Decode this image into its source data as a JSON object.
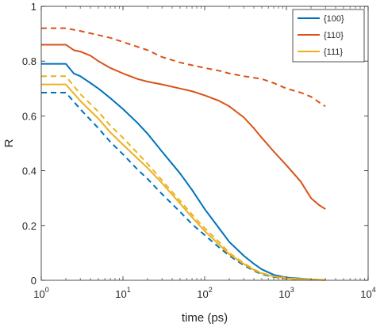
{
  "chart_data": {
    "type": "line",
    "title": "",
    "xlabel": "time (ps)",
    "ylabel": "R",
    "xscale": "log",
    "xlim": [
      1,
      10000
    ],
    "ylim": [
      0,
      1
    ],
    "x_ticks": [
      {
        "base": "10",
        "exp": "0",
        "value": 1
      },
      {
        "base": "10",
        "exp": "1",
        "value": 10
      },
      {
        "base": "10",
        "exp": "2",
        "value": 100
      },
      {
        "base": "10",
        "exp": "3",
        "value": 1000
      },
      {
        "base": "10",
        "exp": "4",
        "value": 10000
      }
    ],
    "y_ticks": [
      {
        "label": "0",
        "value": 0
      },
      {
        "label": "0.2",
        "value": 0.2
      },
      {
        "label": "0.4",
        "value": 0.4
      },
      {
        "label": "0.6",
        "value": 0.6
      },
      {
        "label": "0.8",
        "value": 0.8
      },
      {
        "label": "1",
        "value": 1
      }
    ],
    "grid": false,
    "legend": {
      "position": "top-right",
      "entries": [
        {
          "label": "{100}",
          "color": "#0072BD"
        },
        {
          "label": "{110}",
          "color": "#D95319"
        },
        {
          "label": "{111}",
          "color": "#EDB120"
        }
      ]
    },
    "series": [
      {
        "name": "{100}",
        "color": "#0072BD",
        "dash": "solid",
        "points": [
          [
            1,
            0.79
          ],
          [
            2,
            0.79
          ],
          [
            2.5,
            0.755
          ],
          [
            3,
            0.745
          ],
          [
            4,
            0.72
          ],
          [
            5,
            0.7
          ],
          [
            7,
            0.665
          ],
          [
            10,
            0.625
          ],
          [
            15,
            0.575
          ],
          [
            20,
            0.535
          ],
          [
            30,
            0.47
          ],
          [
            50,
            0.39
          ],
          [
            70,
            0.33
          ],
          [
            100,
            0.26
          ],
          [
            150,
            0.19
          ],
          [
            200,
            0.14
          ],
          [
            300,
            0.09
          ],
          [
            400,
            0.06
          ],
          [
            500,
            0.04
          ],
          [
            700,
            0.02
          ],
          [
            1000,
            0.01
          ],
          [
            2000,
            0.003
          ],
          [
            3000,
            0.001
          ]
        ]
      },
      {
        "name": "{100}",
        "color": "#0072BD",
        "dash": "dashed",
        "points": [
          [
            1,
            0.685
          ],
          [
            2,
            0.685
          ],
          [
            3,
            0.625
          ],
          [
            5,
            0.555
          ],
          [
            7,
            0.505
          ],
          [
            10,
            0.46
          ],
          [
            15,
            0.405
          ],
          [
            20,
            0.37
          ],
          [
            30,
            0.315
          ],
          [
            50,
            0.25
          ],
          [
            70,
            0.205
          ],
          [
            100,
            0.165
          ],
          [
            150,
            0.12
          ],
          [
            200,
            0.09
          ],
          [
            300,
            0.055
          ],
          [
            400,
            0.035
          ],
          [
            500,
            0.022
          ],
          [
            700,
            0.012
          ],
          [
            1000,
            0.006
          ],
          [
            2000,
            0.002
          ],
          [
            3000,
            0.001
          ]
        ]
      },
      {
        "name": "{110}",
        "color": "#D95319",
        "dash": "solid",
        "points": [
          [
            1,
            0.86
          ],
          [
            2,
            0.86
          ],
          [
            2.5,
            0.84
          ],
          [
            3,
            0.835
          ],
          [
            4,
            0.82
          ],
          [
            5,
            0.8
          ],
          [
            7,
            0.775
          ],
          [
            10,
            0.755
          ],
          [
            15,
            0.735
          ],
          [
            20,
            0.725
          ],
          [
            30,
            0.715
          ],
          [
            50,
            0.7
          ],
          [
            70,
            0.69
          ],
          [
            100,
            0.675
          ],
          [
            150,
            0.655
          ],
          [
            200,
            0.635
          ],
          [
            300,
            0.595
          ],
          [
            400,
            0.555
          ],
          [
            500,
            0.52
          ],
          [
            700,
            0.47
          ],
          [
            1000,
            0.42
          ],
          [
            1500,
            0.36
          ],
          [
            2000,
            0.3
          ],
          [
            2500,
            0.275
          ],
          [
            3000,
            0.26
          ]
        ]
      },
      {
        "name": "{110}",
        "color": "#D95319",
        "dash": "dashed",
        "points": [
          [
            1,
            0.92
          ],
          [
            2,
            0.92
          ],
          [
            3,
            0.91
          ],
          [
            5,
            0.895
          ],
          [
            7,
            0.885
          ],
          [
            10,
            0.87
          ],
          [
            20,
            0.84
          ],
          [
            30,
            0.815
          ],
          [
            50,
            0.795
          ],
          [
            70,
            0.785
          ],
          [
            100,
            0.775
          ],
          [
            150,
            0.765
          ],
          [
            200,
            0.755
          ],
          [
            300,
            0.745
          ],
          [
            500,
            0.735
          ],
          [
            700,
            0.72
          ],
          [
            1000,
            0.7
          ],
          [
            1500,
            0.685
          ],
          [
            2000,
            0.67
          ],
          [
            2500,
            0.65
          ],
          [
            3000,
            0.635
          ]
        ]
      },
      {
        "name": "{111}",
        "color": "#EDB120",
        "dash": "solid",
        "points": [
          [
            1,
            0.715
          ],
          [
            2,
            0.715
          ],
          [
            3,
            0.655
          ],
          [
            5,
            0.59
          ],
          [
            7,
            0.54
          ],
          [
            10,
            0.495
          ],
          [
            15,
            0.445
          ],
          [
            20,
            0.41
          ],
          [
            30,
            0.355
          ],
          [
            50,
            0.28
          ],
          [
            70,
            0.23
          ],
          [
            100,
            0.18
          ],
          [
            150,
            0.13
          ],
          [
            200,
            0.095
          ],
          [
            300,
            0.06
          ],
          [
            400,
            0.038
          ],
          [
            500,
            0.025
          ],
          [
            700,
            0.014
          ],
          [
            1000,
            0.007
          ],
          [
            2000,
            0.002
          ],
          [
            3000,
            0.001
          ]
        ]
      },
      {
        "name": "{111}",
        "color": "#EDB120",
        "dash": "dashed",
        "points": [
          [
            1,
            0.745
          ],
          [
            2,
            0.745
          ],
          [
            3,
            0.68
          ],
          [
            5,
            0.615
          ],
          [
            7,
            0.565
          ],
          [
            10,
            0.52
          ],
          [
            15,
            0.465
          ],
          [
            20,
            0.425
          ],
          [
            30,
            0.365
          ],
          [
            50,
            0.29
          ],
          [
            70,
            0.24
          ],
          [
            100,
            0.19
          ],
          [
            150,
            0.14
          ],
          [
            200,
            0.1
          ],
          [
            300,
            0.063
          ],
          [
            400,
            0.04
          ],
          [
            500,
            0.026
          ],
          [
            700,
            0.015
          ],
          [
            1000,
            0.008
          ],
          [
            2000,
            0.002
          ],
          [
            3000,
            0.001
          ]
        ]
      }
    ]
  }
}
